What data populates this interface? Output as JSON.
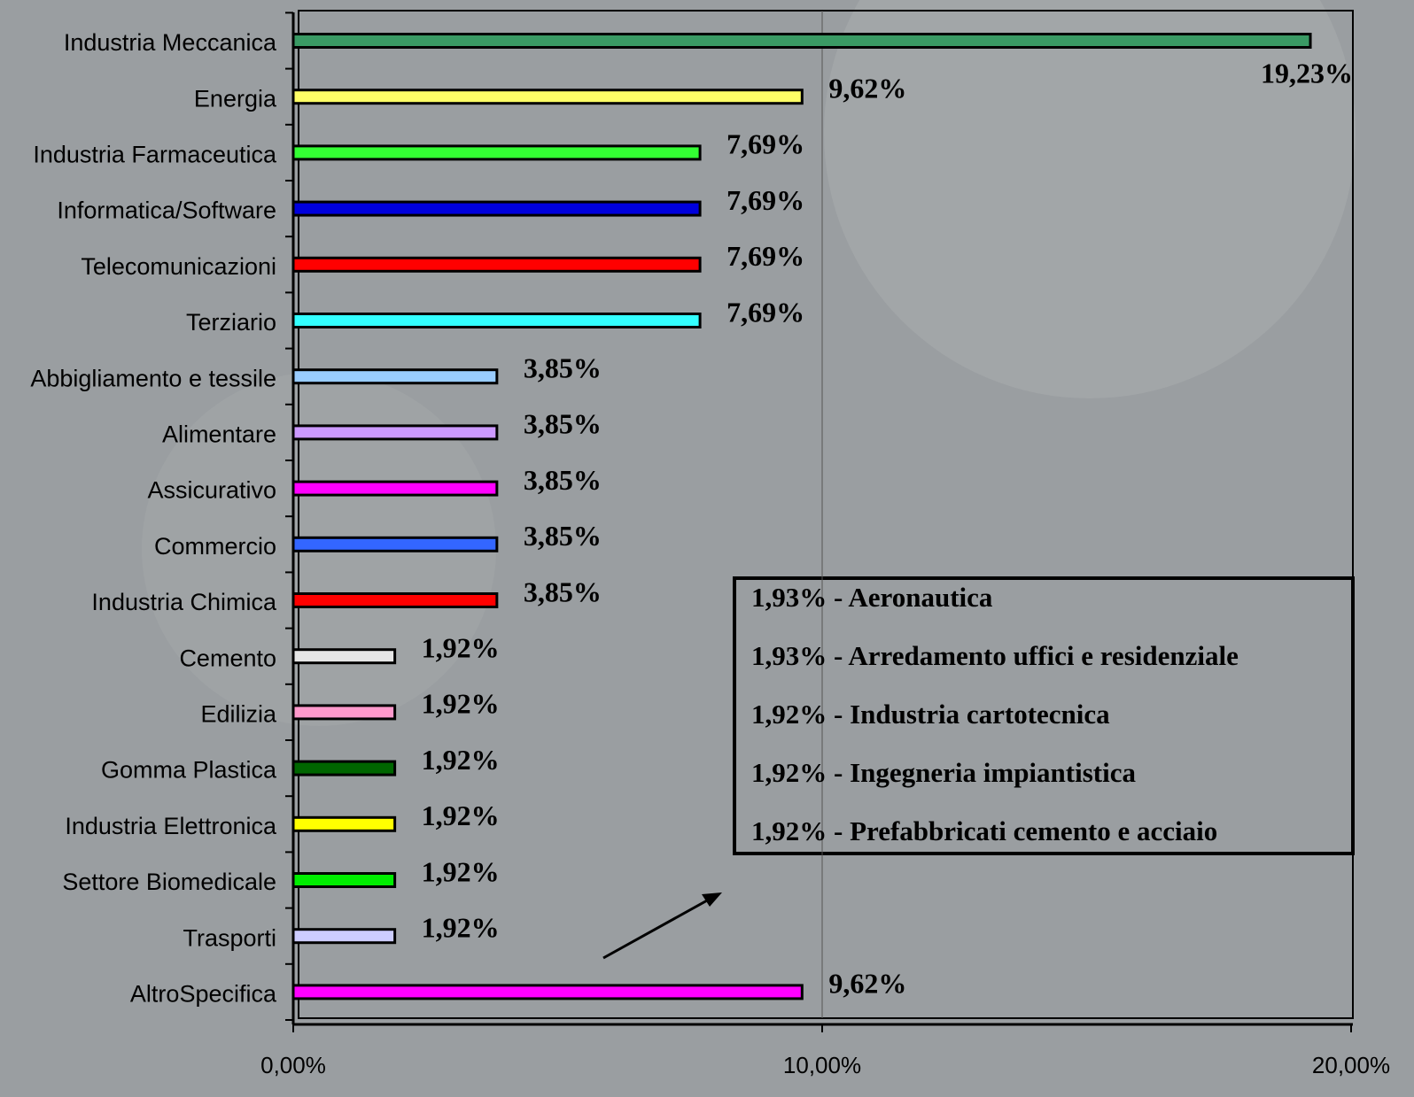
{
  "chart_data": {
    "type": "bar",
    "categories": [
      "Industria Meccanica",
      "Energia",
      "Industria Farmaceutica",
      "Informatica/Software",
      "Telecomunicazioni",
      "Terziario",
      "Abbigliamento e tessile",
      "Alimentare",
      "Assicurativo",
      "Commercio",
      "Industria Chimica",
      "Cemento",
      "Edilizia",
      "Gomma Plastica",
      "Industria Elettronica",
      "Settore Biomedicale",
      "Trasporti",
      "AltroSpecifica"
    ],
    "values": [
      19.23,
      9.62,
      7.69,
      7.69,
      7.69,
      7.69,
      3.85,
      3.85,
      3.85,
      3.85,
      3.85,
      1.92,
      1.92,
      1.92,
      1.92,
      1.92,
      1.92,
      9.62
    ],
    "value_labels": [
      "19,23%",
      "9,62%",
      "7,69%",
      "7,69%",
      "7,69%",
      "7,69%",
      "3,85%",
      "3,85%",
      "3,85%",
      "3,85%",
      "3,85%",
      "1,92%",
      "1,92%",
      "1,92%",
      "1,92%",
      "1,92%",
      "1,92%",
      "9,62%"
    ],
    "colors": [
      "#3a9a64",
      "#ffff66",
      "#33ff33",
      "#0000dd",
      "#ff0000",
      "#33ffff",
      "#99ccff",
      "#cc99ff",
      "#ff00ff",
      "#3366ff",
      "#ff0000",
      "#e6e6e6",
      "#ff99cc",
      "#006600",
      "#ffff00",
      "#00ee00",
      "#ccccff",
      "#ff00ff"
    ],
    "xlim": [
      0,
      20
    ],
    "xticks": [
      {
        "value": 0,
        "label": "0,00%"
      },
      {
        "value": 10,
        "label": "10,00%"
      },
      {
        "value": 20,
        "label": "20,00%"
      }
    ],
    "grid": true,
    "annotations": [
      "1,93% - Aeronautica",
      "1,93% - Arredamento uffici e residenziale",
      "1,92% - Industria cartotecnica",
      "1,92% - Ingegneria impiantistica",
      "1,92% - Prefabbricati cemento e acciaio"
    ]
  }
}
